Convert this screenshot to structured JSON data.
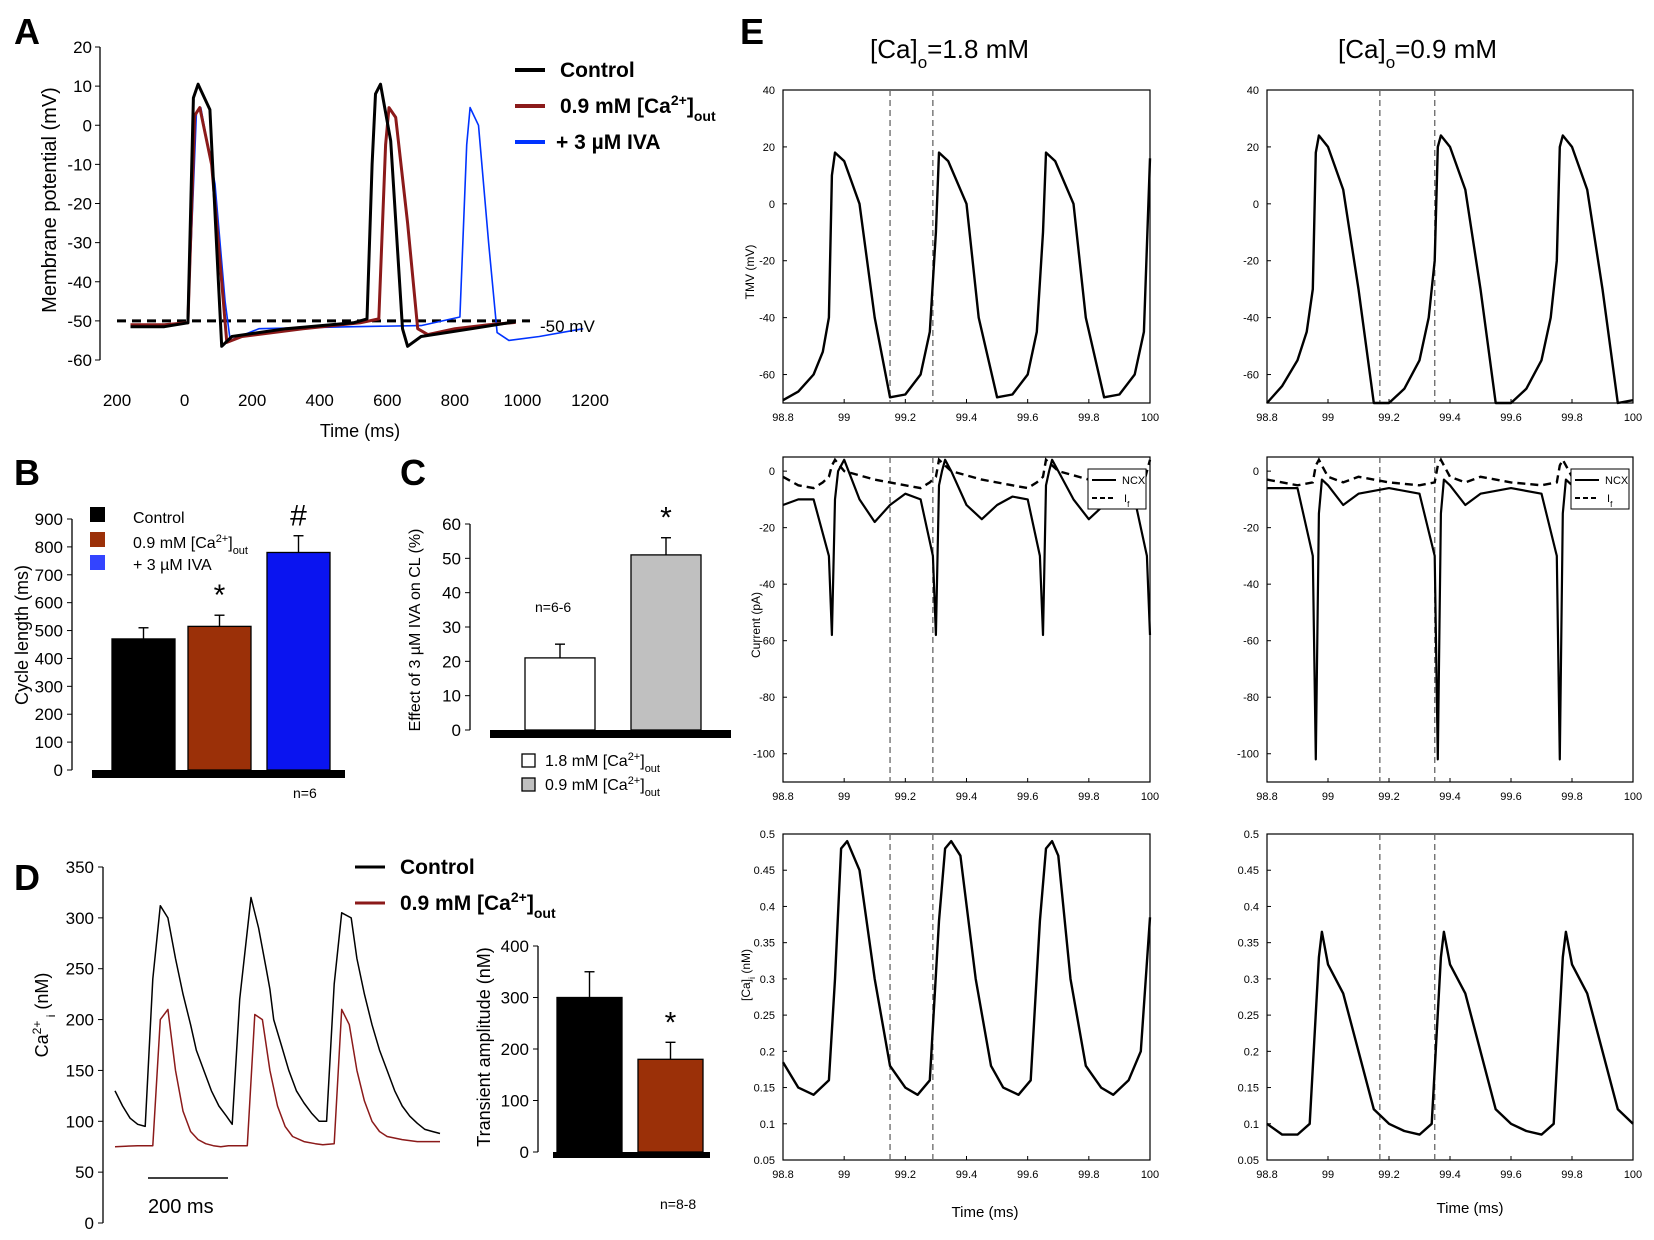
{
  "chart_data": [
    {
      "id": "A",
      "type": "line",
      "panel_label": "A",
      "xlabel": "Time (ms)",
      "ylabel": "Membrane potential (mV)",
      "xticks": [
        "200",
        "0",
        "200",
        "400",
        "600",
        "800",
        "1000",
        "1200"
      ],
      "xlim": [
        -200,
        1200
      ],
      "ylim": [
        -60,
        20
      ],
      "yticks": [
        -60,
        -50,
        -40,
        -30,
        -20,
        -10,
        0,
        10,
        20
      ],
      "reference_line": {
        "value": -50,
        "label": "-50 mV"
      },
      "series": [
        {
          "name": "Control",
          "color": "#000000",
          "x": [
            -160,
            -60,
            10,
            26,
            40,
            75,
            100,
            110,
            140,
            300,
            500,
            540,
            555,
            565,
            580,
            610,
            645,
            660,
            700,
            850,
            980
          ],
          "y": [
            -51.5,
            -51.5,
            -50.5,
            7,
            10.5,
            4,
            -40,
            -56.5,
            -54,
            -52,
            -50.5,
            -49.5,
            -10,
            8,
            10.5,
            -4,
            -52,
            -56.5,
            -54,
            -52,
            -50.2
          ]
        },
        {
          "name": "0.9 mM [Ca2+]out",
          "color": "#8b1a1a",
          "x": [
            -160,
            -60,
            10,
            30,
            45,
            80,
            110,
            125,
            170,
            350,
            520,
            575,
            595,
            605,
            625,
            660,
            690,
            720,
            800,
            900,
            980
          ],
          "y": [
            -51,
            -51,
            -50.5,
            2.5,
            4.5,
            -10,
            -40,
            -55.5,
            -54,
            -52,
            -50.5,
            -49.5,
            -5,
            4.5,
            2,
            -25,
            -52,
            -53.5,
            -52,
            -51,
            -50.4
          ]
        },
        {
          "name": "+ 3 µM IVA",
          "color": "#0033ff",
          "x": [
            -160,
            -60,
            10,
            35,
            48,
            90,
            120,
            135,
            220,
            500,
            700,
            815,
            835,
            845,
            870,
            900,
            925,
            960,
            1050,
            1180
          ],
          "y": [
            -51,
            -51,
            -50.5,
            3,
            4.5,
            -15,
            -45,
            -55,
            -52,
            -51.5,
            -51.2,
            -49,
            -5,
            4.5,
            0,
            -30,
            -53,
            -55,
            -54,
            -52
          ]
        }
      ]
    },
    {
      "id": "B",
      "type": "bar",
      "panel_label": "B",
      "ylabel": "Cycle length (ms)",
      "ylim": [
        0,
        900
      ],
      "yticks": [
        0,
        100,
        200,
        300,
        400,
        500,
        600,
        700,
        800,
        900
      ],
      "categories": [
        "Control",
        "0.9 mM [Ca2+]out",
        "+ 3 µM IVA"
      ],
      "values": [
        470,
        515,
        780
      ],
      "errors": [
        40,
        40,
        60
      ],
      "colors": [
        "#000000",
        "#9b3008",
        "#0a14f0"
      ],
      "marks": [
        "",
        "*",
        "#"
      ],
      "n_label": "n=6"
    },
    {
      "id": "C",
      "type": "bar",
      "panel_label": "C",
      "ylabel": "Effect of 3 µM IVA on CL (%)",
      "ylim": [
        0,
        60
      ],
      "yticks": [
        0,
        10,
        20,
        30,
        40,
        50,
        60
      ],
      "categories": [
        "1.8 mM [Ca2+]out",
        "0.9 mM [Ca2+]out"
      ],
      "values": [
        21,
        51
      ],
      "errors": [
        4,
        5
      ],
      "colors": [
        "#ffffff",
        "#c0c0c0"
      ],
      "marks": [
        "",
        "*"
      ],
      "n_label": "n=6-6"
    },
    {
      "id": "D_trace",
      "type": "line",
      "panel_label": "D",
      "ylabel": "Ca2+ i (nM)",
      "ylim": [
        0,
        350
      ],
      "yticks": [
        0,
        50,
        100,
        150,
        200,
        250,
        300,
        350
      ],
      "scale_bar": "200 ms",
      "series": [
        {
          "name": "Control",
          "color": "#000000",
          "x": [
            0,
            20,
            40,
            60,
            80,
            100,
            120,
            140,
            160,
            180,
            200,
            215,
            235,
            255,
            275,
            295,
            310,
            330,
            360,
            380,
            400,
            410,
            420,
            440,
            460,
            480,
            500,
            520,
            540,
            560,
            580,
            600,
            625,
            640,
            660,
            680,
            700,
            720,
            740,
            760,
            780,
            800,
            820,
            840,
            860
          ],
          "y": [
            130,
            115,
            103,
            97,
            95,
            240,
            312,
            300,
            260,
            225,
            195,
            170,
            150,
            130,
            115,
            105,
            97,
            220,
            320,
            290,
            250,
            230,
            200,
            175,
            150,
            130,
            118,
            108,
            100,
            100,
            235,
            305,
            300,
            260,
            225,
            195,
            170,
            150,
            130,
            115,
            105,
            98,
            92,
            90,
            88
          ]
        },
        {
          "name": "0.9 mM [Ca2+]out",
          "color": "#8b1a1a",
          "x": [
            0,
            60,
            100,
            120,
            140,
            160,
            180,
            200,
            220,
            240,
            260,
            280,
            300,
            330,
            350,
            370,
            390,
            410,
            430,
            450,
            470,
            500,
            530,
            550,
            580,
            600,
            620,
            640,
            660,
            680,
            700,
            720,
            760,
            800,
            860
          ],
          "y": [
            75,
            76,
            76,
            200,
            210,
            150,
            110,
            90,
            82,
            78,
            76,
            75,
            76,
            76,
            76,
            205,
            200,
            150,
            115,
            95,
            85,
            80,
            78,
            77,
            78,
            210,
            195,
            150,
            120,
            100,
            90,
            85,
            82,
            80,
            80
          ]
        }
      ]
    },
    {
      "id": "D_bar",
      "type": "bar",
      "ylabel": "Transient amplitude (nM)",
      "ylim": [
        0,
        400
      ],
      "yticks": [
        0,
        100,
        200,
        300,
        400
      ],
      "categories": [
        "Control",
        "0.9 mM [Ca2+]out"
      ],
      "values": [
        300,
        180
      ],
      "errors": [
        50,
        33
      ],
      "colors": [
        "#000000",
        "#9b3008"
      ],
      "marks": [
        "",
        "*"
      ],
      "n_label": "n=8-8"
    }
  ],
  "panel_e": {
    "letter": "E",
    "xlabel": "Time (ms)",
    "xticks": [
      "98.8",
      "99",
      "99.2",
      "99.4",
      "99.6",
      "99.8",
      "100"
    ],
    "col1": {
      "base": "[Ca]",
      "sub": "o",
      "rest": "=1.8 mM"
    },
    "col2": {
      "base": "[Ca]",
      "sub": "o",
      "rest": "=0.9 mM"
    },
    "row_labels": {
      "tmv": "TMV (mV)",
      "current": "Current (pA)",
      "cai_base": "[Ca]",
      "cai_sub": "i",
      "cai_unit": " (nM)"
    },
    "tmv_ylim": [
      -70,
      40
    ],
    "tmv_yticks": [
      -60,
      -40,
      -20,
      0,
      20,
      40
    ],
    "cur_ylim": [
      -110,
      5
    ],
    "cur_yticks": [
      -100,
      -80,
      -60,
      -40,
      -20,
      0
    ],
    "cai_ylim": [
      0.05,
      0.5
    ],
    "cai_yticks": [
      0.05,
      0.1,
      0.15,
      0.2,
      0.25,
      0.3,
      0.35,
      0.4,
      0.45,
      0.5
    ],
    "legend": {
      "ncx": "NCX",
      "if_base": "I",
      "if_sub": "f"
    },
    "c1": {
      "vlines": [
        99.15,
        99.29
      ],
      "tmv": {
        "x": [
          98.8,
          98.85,
          98.9,
          98.93,
          98.95,
          98.96,
          98.97,
          99.0,
          99.05,
          99.1,
          99.15,
          99.2,
          99.25,
          99.28,
          99.3,
          99.31,
          99.34,
          99.4,
          99.44,
          99.5,
          99.55,
          99.6,
          99.63,
          99.65,
          99.66,
          99.69,
          99.75,
          99.79,
          99.85,
          99.9,
          99.95,
          99.98,
          100
        ],
        "y": [
          -69,
          -66,
          -60,
          -52,
          -40,
          10,
          18,
          15,
          0,
          -40,
          -68,
          -67,
          -60,
          -45,
          -10,
          18,
          15,
          0,
          -40,
          -68,
          -67,
          -60,
          -45,
          -10,
          18,
          15,
          0,
          -40,
          -68,
          -67,
          -60,
          -45,
          16
        ]
      },
      "ncx": {
        "x": [
          98.8,
          98.85,
          98.9,
          98.95,
          98.96,
          98.97,
          98.98,
          99.0,
          99.05,
          99.1,
          99.15,
          99.2,
          99.25,
          99.29,
          99.3,
          99.31,
          99.32,
          99.33,
          99.35,
          99.4,
          99.45,
          99.5,
          99.55,
          99.6,
          99.64,
          99.65,
          99.66,
          99.67,
          99.68,
          99.7,
          99.75,
          99.8,
          99.85,
          99.9,
          99.95,
          99.99,
          100
        ],
        "y": [
          -12,
          -10,
          -10,
          -30,
          -58,
          -10,
          0,
          4,
          -10,
          -18,
          -12,
          -8,
          -10,
          -30,
          -58,
          -5,
          0,
          4,
          0,
          -12,
          -17,
          -12,
          -9,
          -10,
          -30,
          -58,
          -5,
          0,
          4,
          0,
          -10,
          -17,
          -12,
          -9,
          -10,
          -30,
          -58
        ]
      },
      "if": {
        "x": [
          98.8,
          98.85,
          98.9,
          98.93,
          98.95,
          98.96,
          98.97,
          99.0,
          99.1,
          99.2,
          99.25,
          99.28,
          99.3,
          99.31,
          99.35,
          99.45,
          99.55,
          99.6,
          99.63,
          99.65,
          99.66,
          99.7,
          99.8,
          99.9,
          99.95,
          99.98,
          100
        ],
        "y": [
          -2,
          -5,
          -6,
          -4,
          -2,
          2,
          4,
          0,
          -3,
          -5,
          -6,
          -4,
          -2,
          4,
          0,
          -3,
          -5,
          -6,
          -4,
          -2,
          4,
          0,
          -3,
          -5,
          -6,
          -4,
          4
        ]
      },
      "cai": {
        "x": [
          98.8,
          98.85,
          98.9,
          98.95,
          98.97,
          98.99,
          99.01,
          99.05,
          99.1,
          99.15,
          99.2,
          99.24,
          99.28,
          99.31,
          99.33,
          99.35,
          99.38,
          99.43,
          99.48,
          99.52,
          99.57,
          99.61,
          99.64,
          99.66,
          99.68,
          99.7,
          99.74,
          99.79,
          99.84,
          99.88,
          99.93,
          99.97,
          100
        ],
        "y": [
          0.185,
          0.15,
          0.14,
          0.16,
          0.3,
          0.48,
          0.49,
          0.45,
          0.3,
          0.18,
          0.15,
          0.14,
          0.16,
          0.38,
          0.48,
          0.49,
          0.47,
          0.3,
          0.18,
          0.15,
          0.14,
          0.16,
          0.38,
          0.48,
          0.49,
          0.47,
          0.3,
          0.18,
          0.15,
          0.14,
          0.16,
          0.2,
          0.385
        ]
      }
    },
    "c2": {
      "vlines": [
        99.17,
        99.35
      ],
      "tmv": {
        "x": [
          98.8,
          98.85,
          98.9,
          98.93,
          98.95,
          98.96,
          98.97,
          99.0,
          99.05,
          99.1,
          99.15,
          99.2,
          99.25,
          99.3,
          99.33,
          99.35,
          99.36,
          99.37,
          99.4,
          99.45,
          99.5,
          99.55,
          99.6,
          99.65,
          99.7,
          99.73,
          99.75,
          99.76,
          99.77,
          99.8,
          99.85,
          99.9,
          99.95,
          100
        ],
        "y": [
          -70,
          -64,
          -55,
          -45,
          -30,
          18,
          24,
          20,
          5,
          -30,
          -70,
          -70,
          -65,
          -55,
          -40,
          -20,
          20,
          24,
          20,
          5,
          -30,
          -70,
          -70,
          -65,
          -55,
          -40,
          -20,
          20,
          24,
          20,
          5,
          -30,
          -70,
          -69
        ]
      },
      "ncx": {
        "x": [
          98.8,
          98.9,
          98.95,
          98.96,
          98.97,
          98.98,
          99.0,
          99.05,
          99.1,
          99.2,
          99.3,
          99.35,
          99.36,
          99.37,
          99.38,
          99.4,
          99.45,
          99.5,
          99.6,
          99.7,
          99.75,
          99.76,
          99.77,
          99.78,
          99.8
        ],
        "y": [
          -6,
          -6,
          -30,
          -102,
          -15,
          -3,
          -5,
          -12,
          -8,
          -6,
          -8,
          -30,
          -102,
          -15,
          -3,
          -5,
          -12,
          -8,
          -6,
          -8,
          -30,
          -102,
          -15,
          -3,
          -5
        ]
      },
      "if": {
        "x": [
          98.8,
          98.9,
          98.95,
          98.96,
          98.97,
          99.0,
          99.05,
          99.1,
          99.2,
          99.3,
          99.35,
          99.36,
          99.37,
          99.4,
          99.45,
          99.5,
          99.6,
          99.7,
          99.75,
          99.76,
          99.77,
          99.8
        ],
        "y": [
          -3,
          -5,
          -4,
          2,
          4,
          -2,
          -4,
          -2,
          -4,
          -5,
          -4,
          2,
          4,
          -2,
          -4,
          -2,
          -4,
          -5,
          -4,
          2,
          4,
          -2
        ]
      },
      "cai": {
        "x": [
          98.8,
          98.85,
          98.9,
          98.94,
          98.97,
          98.98,
          99.0,
          99.05,
          99.1,
          99.15,
          99.2,
          99.25,
          99.3,
          99.34,
          99.37,
          99.38,
          99.4,
          99.45,
          99.5,
          99.55,
          99.6,
          99.65,
          99.7,
          99.74,
          99.77,
          99.78,
          99.8,
          99.85,
          99.9,
          99.95,
          100
        ],
        "y": [
          0.1,
          0.085,
          0.085,
          0.1,
          0.33,
          0.365,
          0.32,
          0.28,
          0.2,
          0.12,
          0.1,
          0.09,
          0.085,
          0.1,
          0.33,
          0.365,
          0.32,
          0.28,
          0.2,
          0.12,
          0.1,
          0.09,
          0.085,
          0.1,
          0.33,
          0.365,
          0.32,
          0.28,
          0.2,
          0.12,
          0.1
        ]
      }
    }
  }
}
